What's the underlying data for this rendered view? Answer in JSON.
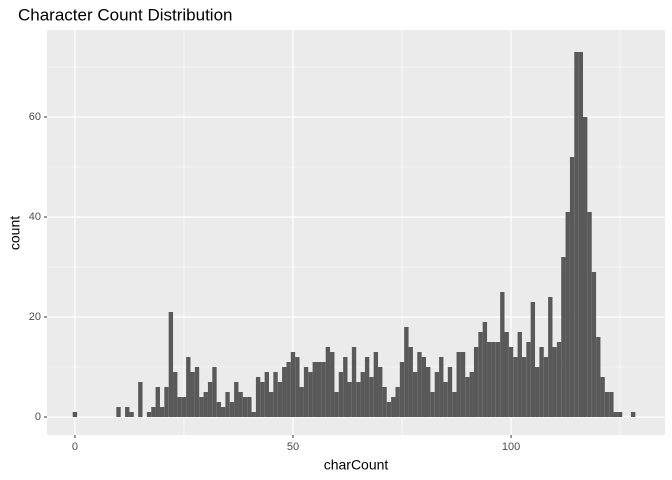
{
  "chart_data": {
    "type": "histogram",
    "title": "Character Count Distribution",
    "x_label": "charCount",
    "y_label": "count",
    "bins": [
      -0.5,
      0.5,
      1.5,
      2.5,
      3.5,
      4.5,
      5.5,
      6.5,
      7.5,
      8.5,
      9.5,
      10.5,
      11.5,
      12.5,
      13.5,
      14.5,
      15.5,
      16.5,
      17.5,
      18.5,
      19.5,
      20.5,
      21.5,
      22.5,
      23.5,
      24.5,
      25.5,
      26.5,
      27.5,
      28.5,
      29.5,
      30.5,
      31.5,
      32.5,
      33.5,
      34.5,
      35.5,
      36.5,
      37.5,
      38.5,
      39.5,
      40.5,
      41.5,
      42.5,
      43.5,
      44.5,
      45.5,
      46.5,
      47.5,
      48.5,
      49.5,
      50.5,
      51.5,
      52.5,
      53.5,
      54.5,
      55.5,
      56.5,
      57.5,
      58.5,
      59.5,
      60.5,
      61.5,
      62.5,
      63.5,
      64.5,
      65.5,
      66.5,
      67.5,
      68.5,
      69.5,
      70.5,
      71.5,
      72.5,
      73.5,
      74.5,
      75.5,
      76.5,
      77.5,
      78.5,
      79.5,
      80.5,
      81.5,
      82.5,
      83.5,
      84.5,
      85.5,
      86.5,
      87.5,
      88.5,
      89.5,
      90.5,
      91.5,
      92.5,
      93.5,
      94.5,
      95.5,
      96.5,
      97.5,
      98.5,
      99.5,
      100.5,
      101.5,
      102.5,
      103.5,
      104.5,
      105.5,
      106.5,
      107.5,
      108.5,
      109.5,
      110.5,
      111.5,
      112.5,
      113.5,
      114.5,
      115.5,
      116.5,
      117.5,
      118.5,
      119.5,
      120.5,
      121.5,
      122.5,
      123.5,
      124.5,
      125.5,
      126.5,
      127.5,
      128.5
    ],
    "values": [
      1,
      0,
      0,
      0,
      0,
      0,
      0,
      0,
      0,
      0,
      2,
      0,
      2,
      1,
      0,
      7,
      0,
      1,
      2,
      6,
      2,
      6,
      21,
      9,
      4,
      4,
      12,
      9,
      10,
      4,
      5,
      7,
      10,
      3,
      2,
      5,
      3,
      7,
      5,
      4,
      4,
      1,
      8,
      7,
      9,
      5,
      9,
      7,
      10,
      11,
      13,
      12,
      6,
      10,
      9,
      11,
      11,
      11,
      14,
      13,
      5,
      9,
      12,
      7,
      14,
      7,
      9,
      12,
      8,
      13,
      10,
      6,
      3,
      4,
      6,
      11,
      18,
      14,
      9,
      13,
      12,
      10,
      5,
      9,
      12,
      7,
      10,
      5,
      13,
      13,
      8,
      9,
      14,
      17,
      19,
      15,
      15,
      15,
      25,
      17,
      14,
      12,
      17,
      12,
      15,
      23,
      10,
      14,
      12,
      24,
      14,
      15,
      32,
      41,
      52,
      73,
      73,
      60,
      41,
      29,
      16,
      8,
      5,
      5,
      1,
      1,
      0,
      0,
      1
    ],
    "color": "#595959",
    "xlim": [
      -6.4,
      135.3
    ],
    "ylim": [
      -3.6,
      77.4
    ],
    "xticks": [
      0,
      50,
      100
    ],
    "yticks": [
      0,
      20,
      40,
      60
    ],
    "x_minor_grid": [
      25,
      75,
      125
    ],
    "y_minor_grid": [
      10,
      30,
      50,
      70
    ],
    "grid": true,
    "panel_color": "#ebebeb"
  }
}
